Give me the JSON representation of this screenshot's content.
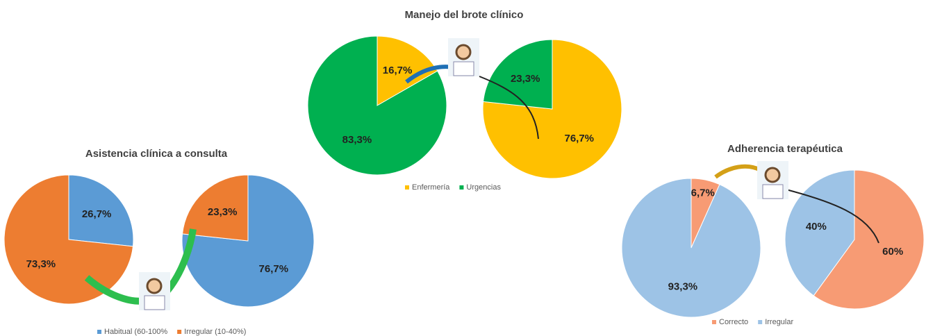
{
  "chart_data": [
    {
      "type": "pie",
      "title": "Manejo del brote clínico",
      "categories": [
        "Enfermería",
        "Urgencias"
      ],
      "colors": [
        "#FFC000",
        "#00B050"
      ],
      "series": [
        {
          "values": [
            16.7,
            83.3
          ],
          "value_labels": [
            "16,7%",
            "83,3%"
          ]
        },
        {
          "values": [
            76.7,
            23.3
          ],
          "value_labels": [
            "76,7%",
            "23,3%"
          ]
        }
      ]
    },
    {
      "type": "pie",
      "title": "Asistencia clínica a consulta",
      "categories": [
        "Habitual (60-100%",
        "Irregular (10-40%)"
      ],
      "colors": [
        "#5B9BD5",
        "#ED7D31"
      ],
      "series": [
        {
          "values": [
            26.7,
            73.3
          ],
          "value_labels": [
            "26,7%",
            "73,3%"
          ]
        },
        {
          "values": [
            76.7,
            23.3
          ],
          "value_labels": [
            "76,7%",
            "23,3%"
          ]
        }
      ]
    },
    {
      "type": "pie",
      "title": "Adherencia terapéutica",
      "categories": [
        "Correcto",
        "Irregular"
      ],
      "colors": [
        "#F79B74",
        "#9DC3E6"
      ],
      "series": [
        {
          "values": [
            6.7,
            93.3
          ],
          "value_labels": [
            "6,7%",
            "93,3%"
          ]
        },
        {
          "values": [
            60,
            40
          ],
          "value_labels": [
            "60%",
            "40%"
          ]
        }
      ]
    }
  ]
}
